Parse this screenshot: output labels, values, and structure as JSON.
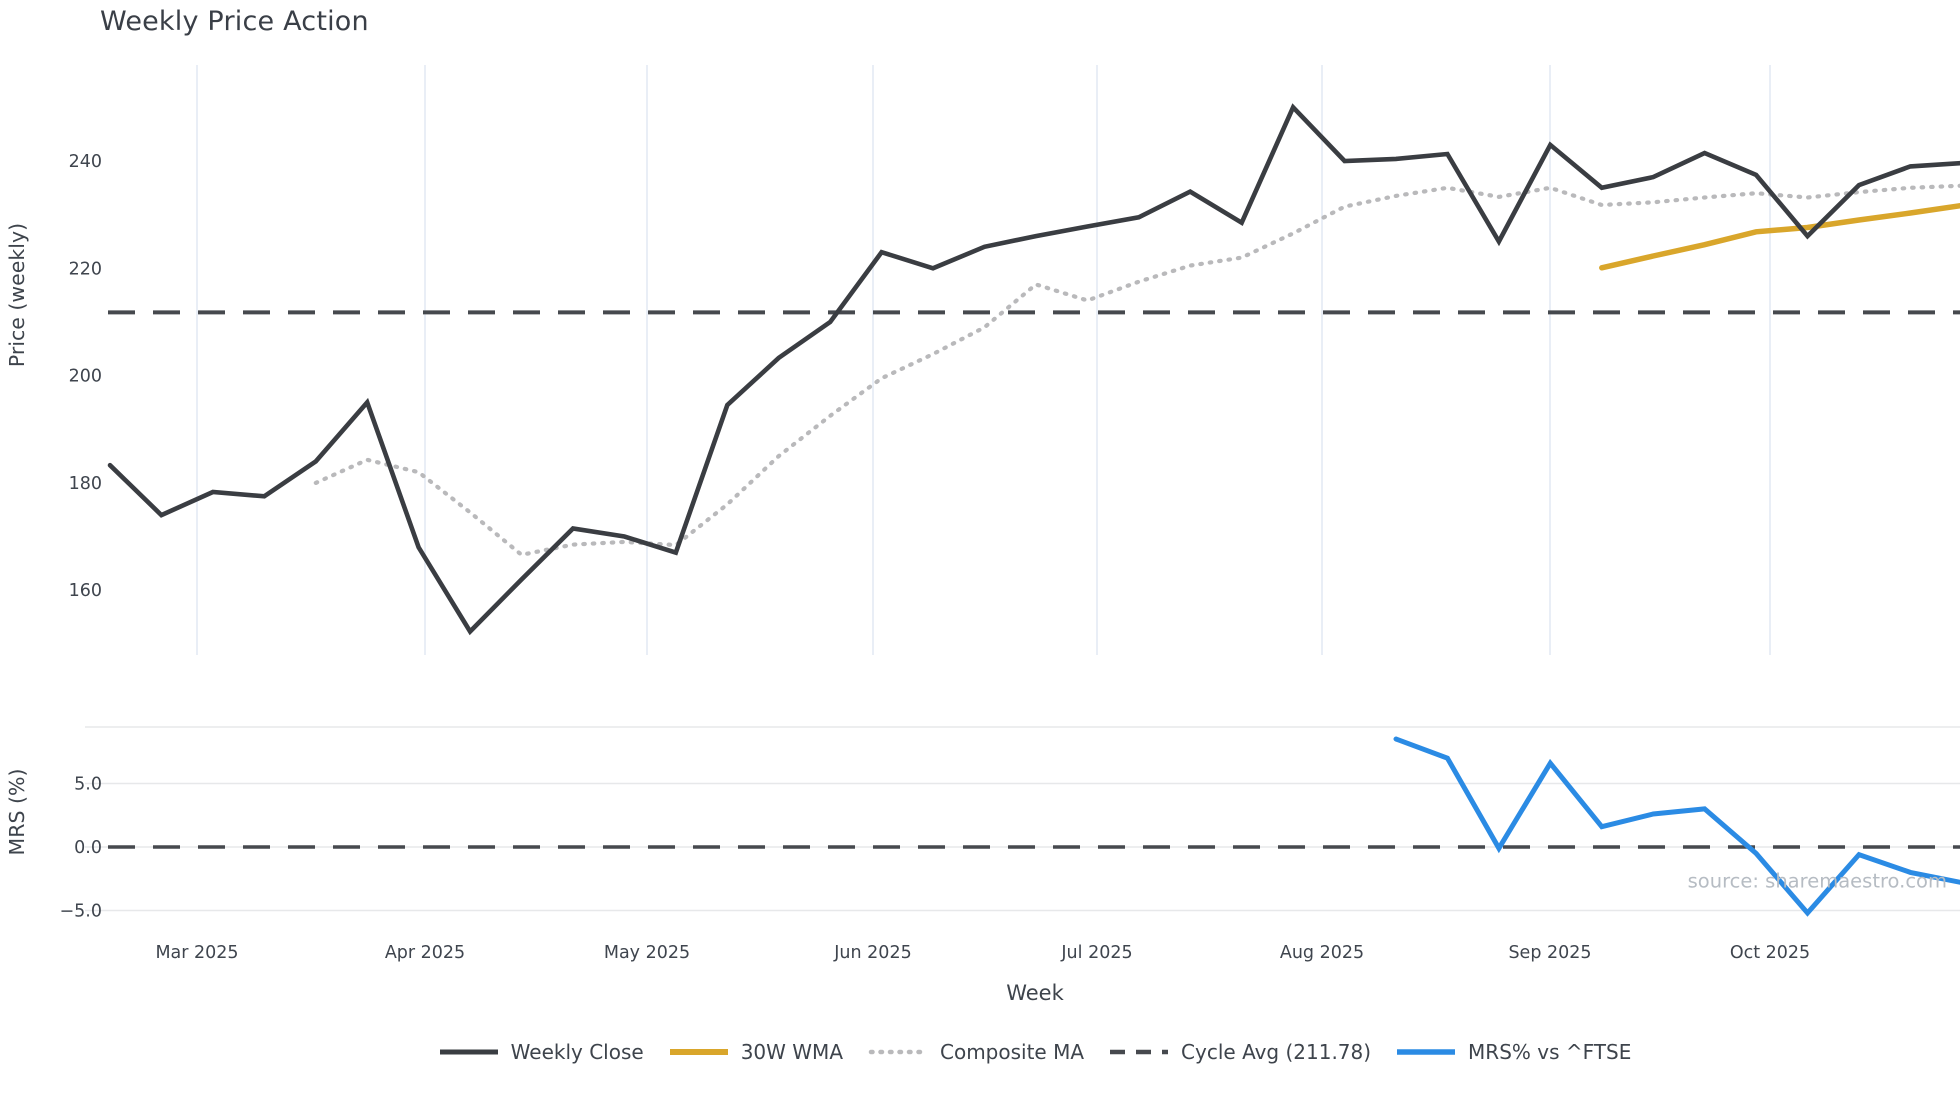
{
  "title": "Weekly Price Action",
  "source_note": "source: sharemaestro.com",
  "colors": {
    "weekly_close": "#3a3d42",
    "wma30": "#d9a62b",
    "composite_ma": "#b9b9bb",
    "cycle_avg": "#46494e",
    "mrs": "#2b8be4",
    "grid_vertical": "#e9eef6",
    "grid_horizontal": "#e7e8ea",
    "tick_text": "#3f454e",
    "title_text": "#3a3f47",
    "source_text": "#b6bcc3",
    "background": "#ffffff"
  },
  "legend": [
    {
      "label": "Weekly Close",
      "swatch": "solid-dark"
    },
    {
      "label": "30W WMA",
      "swatch": "solid-gold"
    },
    {
      "label": "Composite MA",
      "swatch": "dotted-gray"
    },
    {
      "label": "Cycle Avg (211.78)",
      "swatch": "dashed-dark"
    },
    {
      "label": "MRS% vs ^FTSE",
      "swatch": "solid-blue"
    }
  ],
  "chart_data": {
    "type": "line",
    "title": "Weekly Price Action",
    "xlabel": "Week",
    "x_month_ticks": [
      "Mar 2025",
      "Apr 2025",
      "May 2025",
      "Jun 2025",
      "Jul 2025",
      "Aug 2025",
      "Sep 2025",
      "Oct 2025"
    ],
    "x_weeks": [
      "2025-02-17",
      "2025-02-24",
      "2025-03-03",
      "2025-03-10",
      "2025-03-17",
      "2025-03-24",
      "2025-03-31",
      "2025-04-07",
      "2025-04-14",
      "2025-04-21",
      "2025-04-28",
      "2025-05-05",
      "2025-05-12",
      "2025-05-19",
      "2025-05-26",
      "2025-06-02",
      "2025-06-09",
      "2025-06-16",
      "2025-06-23",
      "2025-06-30",
      "2025-07-07",
      "2025-07-14",
      "2025-07-21",
      "2025-07-28",
      "2025-08-04",
      "2025-08-11",
      "2025-08-18",
      "2025-08-25",
      "2025-09-01",
      "2025-09-08",
      "2025-09-15",
      "2025-09-22",
      "2025-09-29",
      "2025-10-06",
      "2025-10-13",
      "2025-10-20",
      "2025-10-27"
    ],
    "grid": {
      "top_panel": "vertical-month-lines",
      "bottom_panel": "horizontal-lines"
    },
    "legend_position": "bottom-center",
    "panels": [
      {
        "ylabel": "Price (weekly)",
        "ytick_labels": [
          "160",
          "180",
          "200",
          "220",
          "240"
        ],
        "ytick_values": [
          160,
          180,
          200,
          220,
          240
        ],
        "ylim": [
          148.5,
          258.5
        ],
        "series": [
          {
            "name": "Weekly Close",
            "style": "solid",
            "color_key": "weekly_close",
            "values": [
              183.3,
              174,
              178.3,
              177.5,
              184,
              195,
              168,
              152.3,
              162,
              171.5,
              170,
              167,
              194.5,
              203.3,
              210,
              223,
              220,
              224,
              226,
              227.8,
              229.5,
              234.3,
              228.5,
              250,
              240,
              240.4,
              241.3,
              225,
              243,
              235,
              237,
              241.5,
              237.4,
              226,
              235.5,
              239,
              239.6
            ]
          },
          {
            "name": "30W WMA",
            "style": "solid",
            "color_key": "wma30",
            "values": [
              null,
              null,
              null,
              null,
              null,
              null,
              null,
              null,
              null,
              null,
              null,
              null,
              null,
              null,
              null,
              null,
              null,
              null,
              null,
              null,
              null,
              null,
              null,
              null,
              null,
              null,
              null,
              null,
              null,
              220.1,
              222.3,
              224.4,
              226.8,
              227.6,
              229,
              230.3,
              231.7
            ]
          },
          {
            "name": "Composite MA",
            "style": "dotted",
            "color_key": "composite_ma",
            "values": [
              null,
              null,
              null,
              null,
              180,
              184.3,
              182,
              174.5,
              166.6,
              168.5,
              169,
              168.4,
              176,
              185,
              192.5,
              199.5,
              204,
              209,
              217,
              214,
              217.5,
              220.5,
              222,
              226.5,
              231.5,
              233.5,
              235,
              233.3,
              235,
              231.8,
              232.3,
              233.2,
              234,
              233.2,
              234.2,
              235,
              235.4
            ]
          },
          {
            "name": "Cycle Avg",
            "style": "dashed-hline",
            "color_key": "cycle_avg",
            "value": 211.78
          }
        ]
      },
      {
        "ylabel": "MRS (%)",
        "ytick_labels": [
          "−5.0",
          "0.0",
          "5.0"
        ],
        "ytick_values": [
          -5,
          0,
          5
        ],
        "ylim": [
          -6.4,
          9.45
        ],
        "zero_line": {
          "style": "dashed-hline",
          "value": 0,
          "color_key": "cycle_avg"
        },
        "series": [
          {
            "name": "MRS% vs ^FTSE",
            "style": "solid",
            "color_key": "mrs",
            "values": [
              null,
              null,
              null,
              null,
              null,
              null,
              null,
              null,
              null,
              null,
              null,
              null,
              null,
              null,
              null,
              null,
              null,
              null,
              null,
              null,
              null,
              null,
              null,
              null,
              null,
              8.5,
              7.0,
              -0.1,
              6.6,
              1.6,
              2.6,
              3.0,
              -0.5,
              -5.2,
              -0.6,
              -2.0,
              -2.8
            ]
          }
        ]
      }
    ]
  }
}
